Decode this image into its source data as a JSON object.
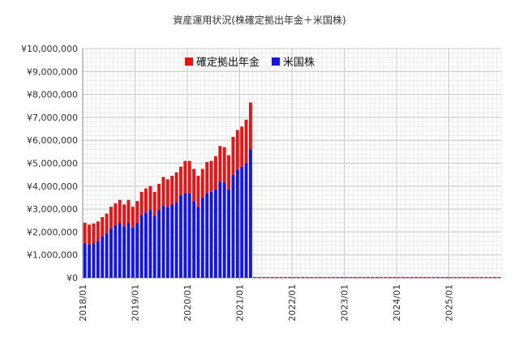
{
  "chart_data": {
    "type": "bar",
    "stacked": true,
    "title": "資産運用状況(株確定拠出年金＋米国株)",
    "legend_position": "top-center",
    "grid": true,
    "ylim": [
      0,
      10000000
    ],
    "y_ticks": [
      "¥0",
      "¥1,000,000",
      "¥2,000,000",
      "¥3,000,000",
      "¥4,000,000",
      "¥5,000,000",
      "¥6,000,000",
      "¥7,000,000",
      "¥8,000,000",
      "¥9,000,000",
      "¥10,000,000"
    ],
    "x_ticks": [
      "2018/01",
      "2019/01",
      "2020/01",
      "2021/01",
      "2022/01",
      "2023/01",
      "2024/01",
      "2025/01"
    ],
    "x_range": [
      "2018/01",
      "2025/12"
    ],
    "categories": [
      "2018/01",
      "2018/02",
      "2018/03",
      "2018/04",
      "2018/05",
      "2018/06",
      "2018/07",
      "2018/08",
      "2018/09",
      "2018/10",
      "2018/11",
      "2018/12",
      "2019/01",
      "2019/02",
      "2019/03",
      "2019/04",
      "2019/05",
      "2019/06",
      "2019/07",
      "2019/08",
      "2019/09",
      "2019/10",
      "2019/11",
      "2019/12",
      "2020/01",
      "2020/02",
      "2020/03",
      "2020/04",
      "2020/05",
      "2020/06",
      "2020/07",
      "2020/08",
      "2020/09",
      "2020/10",
      "2020/11",
      "2020/12",
      "2021/01",
      "2021/02",
      "2021/03"
    ],
    "series": [
      {
        "name": "米国株",
        "color": "#1414e6",
        "values": [
          1500000,
          1450000,
          1500000,
          1600000,
          1800000,
          1950000,
          2150000,
          2300000,
          2400000,
          2250000,
          2400000,
          2200000,
          2400000,
          2750000,
          2850000,
          2950000,
          2700000,
          2950000,
          3150000,
          3100000,
          3200000,
          3300000,
          3600000,
          3700000,
          3700000,
          3350000,
          3100000,
          3500000,
          3700000,
          3750000,
          3850000,
          4200000,
          4150000,
          3850000,
          4500000,
          4700000,
          4850000,
          5000000,
          5600000
        ]
      },
      {
        "name": "確定拠出年金",
        "color": "#e61414",
        "values": [
          900000,
          870000,
          870000,
          860000,
          850000,
          850000,
          950000,
          950000,
          1000000,
          950000,
          1000000,
          900000,
          950000,
          1000000,
          1050000,
          1050000,
          1050000,
          1150000,
          1250000,
          1200000,
          1250000,
          1300000,
          1250000,
          1400000,
          1400000,
          1400000,
          1350000,
          1250000,
          1350000,
          1350000,
          1450000,
          1550000,
          1550000,
          1500000,
          1650000,
          1750000,
          1750000,
          1900000,
          2050000
        ]
      }
    ]
  }
}
